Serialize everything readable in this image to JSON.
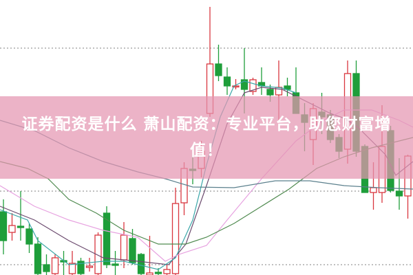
{
  "banner": {
    "line1": "证券配资是什么 萧山配资：专业平台，助您财富增",
    "line2": "值！"
  },
  "chart_data": {
    "type": "candlestick",
    "grid": "horizontal-dotted",
    "grid_levels": [
      33,
      12.2,
      1.5
    ],
    "ylim": [
      0,
      40
    ],
    "colors": {
      "up": "#d9363e",
      "down": "#1e9e3a",
      "grid": "#999999"
    },
    "candles": [
      {
        "o": 9.2,
        "h": 11.0,
        "l": 3.0,
        "c": 5.0
      },
      {
        "o": 6.2,
        "h": 9.0,
        "l": 5.0,
        "c": 7.2
      },
      {
        "o": 7.1,
        "h": 12.2,
        "l": 5.0,
        "c": 6.9
      },
      {
        "o": 6.7,
        "h": 7.5,
        "l": 3.2,
        "c": 4.5
      },
      {
        "o": 4.5,
        "h": 5.5,
        "l": 0,
        "c": 0.2
      },
      {
        "o": 1.5,
        "h": 3.0,
        "l": 0,
        "c": 0.5
      },
      {
        "o": 0.2,
        "h": 3.0,
        "l": 0,
        "c": 2.5
      },
      {
        "o": 2.1,
        "h": 3.5,
        "l": 0,
        "c": 1.9
      },
      {
        "o": 0.2,
        "h": 3.5,
        "l": 0,
        "c": 1.7
      },
      {
        "o": 2.0,
        "h": 2.5,
        "l": 0,
        "c": 0.2
      },
      {
        "o": 1.1,
        "h": 2.5,
        "l": 0.5,
        "c": 1.3
      },
      {
        "o": 0.2,
        "h": 6.2,
        "l": 0,
        "c": 5.8
      },
      {
        "o": 9.0,
        "h": 10.0,
        "l": 1.0,
        "c": 1.5
      },
      {
        "o": 1.6,
        "h": 3.5,
        "l": 0,
        "c": 1.4
      },
      {
        "o": 2.2,
        "h": 7.7,
        "l": 1.0,
        "c": 5.8
      },
      {
        "o": 5.3,
        "h": 6.7,
        "l": 1.5,
        "c": 1.8
      },
      {
        "o": 3.0,
        "h": 3.2,
        "l": 0,
        "c": 0.2
      },
      {
        "o": 0,
        "h": 5.7,
        "l": 0,
        "c": 0.3
      },
      {
        "o": 0.4,
        "h": 1.0,
        "l": 0,
        "c": 0.2
      },
      {
        "o": 0.2,
        "h": 1.5,
        "l": 0,
        "c": 0.8
      },
      {
        "o": 0.2,
        "h": 12.7,
        "l": 0,
        "c": 10.4
      },
      {
        "o": 10.5,
        "h": 16.4,
        "l": 8.7,
        "c": 15.5
      },
      {
        "o": 15.4,
        "h": 17.8,
        "l": 13.2,
        "c": 15.2
      },
      {
        "o": 15.5,
        "h": 19.5,
        "l": 14.2,
        "c": 18.0
      },
      {
        "o": 23.5,
        "h": 39.0,
        "l": 23.0,
        "c": 30.7
      },
      {
        "o": 30.7,
        "h": 33.5,
        "l": 28.2,
        "c": 29.0
      },
      {
        "o": 28.8,
        "h": 30.2,
        "l": 26.2,
        "c": 27.5
      },
      {
        "o": 27.4,
        "h": 28.5,
        "l": 27.0,
        "c": 27.5
      },
      {
        "o": 28.4,
        "h": 33.0,
        "l": 23.5,
        "c": 27.0
      },
      {
        "o": 26.7,
        "h": 28.7,
        "l": 26.2,
        "c": 28.4
      },
      {
        "o": 28.0,
        "h": 30.2,
        "l": 26.2,
        "c": 27.5
      },
      {
        "o": 27.0,
        "h": 27.7,
        "l": 25.2,
        "c": 26.2
      },
      {
        "o": 26.2,
        "h": 31.2,
        "l": 22.5,
        "c": 27.3
      },
      {
        "o": 27.5,
        "h": 28.7,
        "l": 26.0,
        "c": 27.0
      },
      {
        "o": 26.5,
        "h": 30.2,
        "l": 23.5,
        "c": 23.5
      },
      {
        "o": 23.3,
        "h": 25.0,
        "l": 18.0,
        "c": 22.2
      },
      {
        "o": 19.7,
        "h": 25.0,
        "l": 16.0,
        "c": 24.2
      },
      {
        "o": 23.7,
        "h": 26.5,
        "l": 20.5,
        "c": 23.0
      },
      {
        "o": 23.3,
        "h": 24.0,
        "l": 19.2,
        "c": 19.7
      },
      {
        "o": 20.0,
        "h": 20.5,
        "l": 17.0,
        "c": 18.0
      },
      {
        "o": 18.3,
        "h": 31.2,
        "l": 16.2,
        "c": 29.3
      },
      {
        "o": 29.3,
        "h": 31.2,
        "l": 17.2,
        "c": 18.0
      },
      {
        "o": 18.7,
        "h": 19.0,
        "l": 12.0,
        "c": 12.0
      },
      {
        "o": 12.0,
        "h": 16.4,
        "l": 9.5,
        "c": 12.7
      },
      {
        "o": 12.0,
        "h": 24.7,
        "l": 10.5,
        "c": 18.7
      },
      {
        "o": 21.0,
        "h": 21.7,
        "l": 12.0,
        "c": 12.3
      },
      {
        "o": 12.2,
        "h": 17.0,
        "l": 9.5,
        "c": 11.5
      },
      {
        "o": 11.5,
        "h": 17.5,
        "l": 8.2,
        "c": 17.3
      }
    ],
    "moving_averages": [
      {
        "color": "#6b4a6e",
        "points": [
          [
            -0.4,
            10
          ],
          [
            3.6,
            8
          ],
          [
            7.6,
            5
          ],
          [
            11.6,
            2.5
          ],
          [
            15.6,
            2
          ],
          [
            19.2,
            1.5
          ],
          [
            21.2,
            4.5
          ],
          [
            23.6,
            13
          ],
          [
            26,
            22
          ],
          [
            28,
            26.5
          ],
          [
            30,
            27.3
          ],
          [
            32.4,
            27
          ],
          [
            34,
            26
          ],
          [
            36.4,
            24.5
          ],
          [
            38,
            23.5
          ],
          [
            39.6,
            22.8
          ],
          [
            41.2,
            21.5
          ],
          [
            42.8,
            19.5
          ],
          [
            44.4,
            17.5
          ],
          [
            45.6,
            14.5
          ],
          [
            47.6,
            16.5
          ]
        ]
      },
      {
        "color": "#3aa6a8",
        "points": [
          [
            -0.4,
            9.5
          ],
          [
            2.8,
            8
          ],
          [
            4,
            5
          ],
          [
            7.6,
            1.5
          ],
          [
            11.6,
            2
          ],
          [
            14,
            2
          ],
          [
            18,
            0.8
          ],
          [
            20,
            2.5
          ],
          [
            22,
            8
          ],
          [
            23.6,
            16
          ],
          [
            25.2,
            23
          ],
          [
            26.8,
            27.5
          ],
          [
            28,
            28.2
          ],
          [
            30,
            27.5
          ],
          [
            32.4,
            27.2
          ],
          [
            34,
            26.5
          ]
        ]
      },
      {
        "color": "#e7a2e0",
        "points": [
          [
            -0.4,
            13
          ],
          [
            3.6,
            10
          ],
          [
            7.6,
            8
          ],
          [
            11.6,
            6.5
          ],
          [
            15.6,
            5.5
          ],
          [
            18.8,
            2
          ],
          [
            20.4,
            3
          ],
          [
            23.6,
            4.3
          ],
          [
            26,
            8
          ],
          [
            30,
            14
          ],
          [
            34,
            19.5
          ],
          [
            37.2,
            22.5
          ],
          [
            39.6,
            24
          ],
          [
            42.8,
            24
          ],
          [
            46,
            22.5
          ],
          [
            47.6,
            21.5
          ]
        ]
      },
      {
        "color": "#4f8a4f",
        "points": [
          [
            -0.4,
            16.5
          ],
          [
            2.8,
            15.5
          ],
          [
            5.2,
            14
          ],
          [
            7.6,
            11
          ],
          [
            10.8,
            9
          ],
          [
            14,
            6.5
          ],
          [
            18,
            4.5
          ],
          [
            21.2,
            4.5
          ],
          [
            23.6,
            5.5
          ],
          [
            26.8,
            7.5
          ],
          [
            30,
            10
          ],
          [
            33.2,
            12.5
          ],
          [
            36.4,
            15.5
          ],
          [
            39.6,
            17.2
          ],
          [
            42.8,
            18.5
          ],
          [
            46,
            19.5
          ],
          [
            47.6,
            20
          ]
        ]
      },
      {
        "color": "#5a7f8c",
        "points": [
          [
            -0.4,
            22.5
          ],
          [
            3.6,
            21
          ],
          [
            7.6,
            18.5
          ],
          [
            11.6,
            16.5
          ],
          [
            15.6,
            15
          ],
          [
            18.8,
            14
          ],
          [
            22,
            12.8
          ],
          [
            26.8,
            12.7
          ],
          [
            31.6,
            13.7
          ],
          [
            35.6,
            13.7
          ],
          [
            39.6,
            13
          ],
          [
            43.6,
            12.7
          ],
          [
            47.6,
            12.5
          ]
        ]
      }
    ]
  }
}
